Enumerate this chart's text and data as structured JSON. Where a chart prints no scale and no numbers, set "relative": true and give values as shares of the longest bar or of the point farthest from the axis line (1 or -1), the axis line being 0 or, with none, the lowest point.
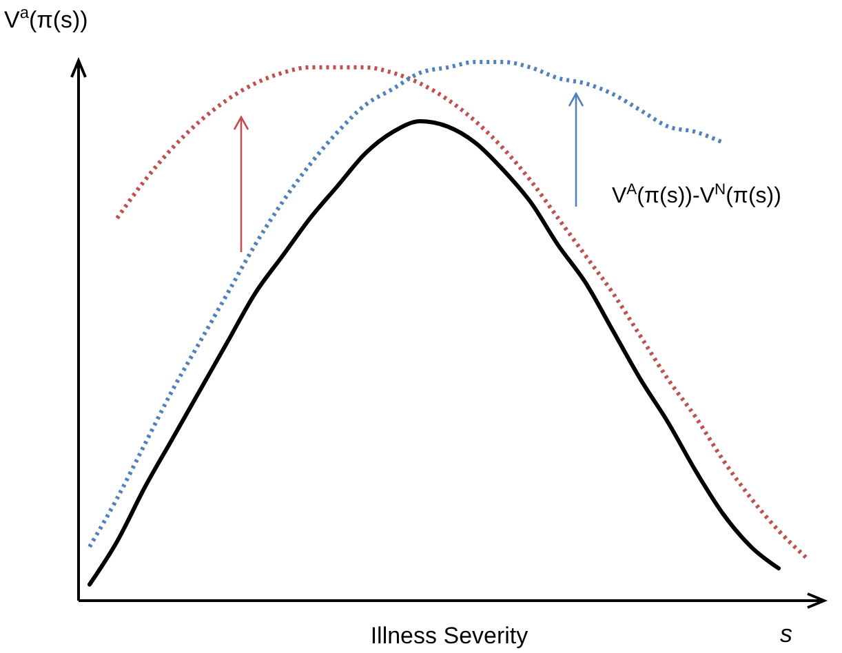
{
  "chart_data": {
    "type": "line",
    "relative": true,
    "xlabel": "Illness Severity",
    "ylabel": "V$^{a}$(π(s))",
    "annotations": [
      "V$^{A}$(π(s))-V$^{N}$(π(s))",
      "s"
    ],
    "categories": [
      null,
      null,
      null,
      null,
      null,
      null,
      null,
      null,
      null,
      null,
      null,
      null,
      null,
      null,
      null,
      null,
      null,
      null,
      null,
      null,
      null,
      null,
      null,
      null,
      null,
      null,
      null
    ],
    "marker": "none",
    "series": [
      {
        "color": "#000000",
        "line_style": "solid",
        "values": [
          0.03,
          0.11,
          0.21,
          0.3,
          0.39,
          0.48,
          0.57,
          0.64,
          0.71,
          0.77,
          0.83,
          0.87,
          0.89,
          0.88,
          0.85,
          0.8,
          0.74,
          0.66,
          0.59,
          0.5,
          0.41,
          0.33,
          0.24,
          0.16,
          0.1,
          0.06,
          null
        ]
      },
      {
        "color": "#c0504d",
        "line_style": "dotted",
        "values": [
          null,
          0.71,
          0.78,
          0.84,
          0.89,
          0.93,
          0.96,
          0.98,
          0.99,
          0.99,
          0.99,
          0.98,
          0.96,
          0.93,
          0.89,
          0.84,
          0.78,
          0.71,
          0.64,
          0.57,
          0.49,
          0.41,
          0.34,
          0.26,
          0.19,
          0.13,
          0.08
        ]
      },
      {
        "color": "#4f81bd",
        "line_style": "dotted",
        "values": [
          0.1,
          0.19,
          0.29,
          0.39,
          0.48,
          0.57,
          0.66,
          0.74,
          0.81,
          0.87,
          0.92,
          0.95,
          0.98,
          0.99,
          1.0,
          1.0,
          0.99,
          0.97,
          0.96,
          0.94,
          0.91,
          0.88,
          0.87,
          0.85,
          null,
          null,
          null
        ]
      }
    ]
  }
}
